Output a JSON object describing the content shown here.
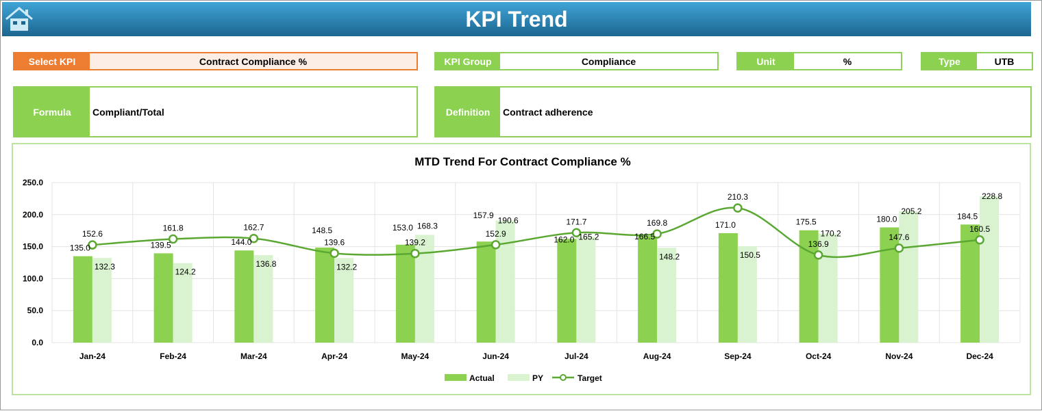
{
  "header": {
    "title": "KPI Trend",
    "home_icon": "home-icon"
  },
  "fields": {
    "select_kpi": {
      "label": "Select KPI",
      "value": "Contract Compliance %"
    },
    "kpi_group": {
      "label": "KPI Group",
      "value": "Compliance"
    },
    "unit": {
      "label": "Unit",
      "value": "%"
    },
    "type": {
      "label": "Type",
      "value": "UTB"
    },
    "formula": {
      "label": "Formula",
      "value": "Compliant/Total"
    },
    "definition": {
      "label": "Definition",
      "value": "Contract adherence"
    }
  },
  "colors": {
    "accent_orange": "#ed7d31",
    "green": "#8cd14f",
    "py": "#d9f2d0",
    "target": "#5aa832"
  },
  "chart_data": {
    "type": "bar",
    "title": "MTD Trend For Contract Compliance %",
    "categories": [
      "Jan-24",
      "Feb-24",
      "Mar-24",
      "Apr-24",
      "May-24",
      "Jun-24",
      "Jul-24",
      "Aug-24",
      "Sep-24",
      "Oct-24",
      "Nov-24",
      "Dec-24"
    ],
    "ylim": [
      0,
      250
    ],
    "yticks": [
      "0.0",
      "50.0",
      "100.0",
      "150.0",
      "200.0",
      "250.0"
    ],
    "grid": true,
    "legend": "bottom",
    "series": [
      {
        "name": "Actual",
        "type": "bar",
        "values": [
          135.0,
          139.5,
          144.0,
          148.5,
          153.0,
          157.9,
          162.0,
          166.5,
          171.0,
          175.5,
          180.0,
          184.5
        ]
      },
      {
        "name": "PY",
        "type": "bar",
        "values": [
          132.3,
          124.2,
          136.8,
          132.2,
          168.3,
          190.6,
          165.2,
          148.2,
          150.5,
          170.2,
          205.2,
          228.8
        ]
      },
      {
        "name": "Target",
        "type": "line",
        "values": [
          152.6,
          161.8,
          162.7,
          139.6,
          139.2,
          152.9,
          171.7,
          169.8,
          210.3,
          136.9,
          147.6,
          160.5
        ]
      }
    ]
  }
}
